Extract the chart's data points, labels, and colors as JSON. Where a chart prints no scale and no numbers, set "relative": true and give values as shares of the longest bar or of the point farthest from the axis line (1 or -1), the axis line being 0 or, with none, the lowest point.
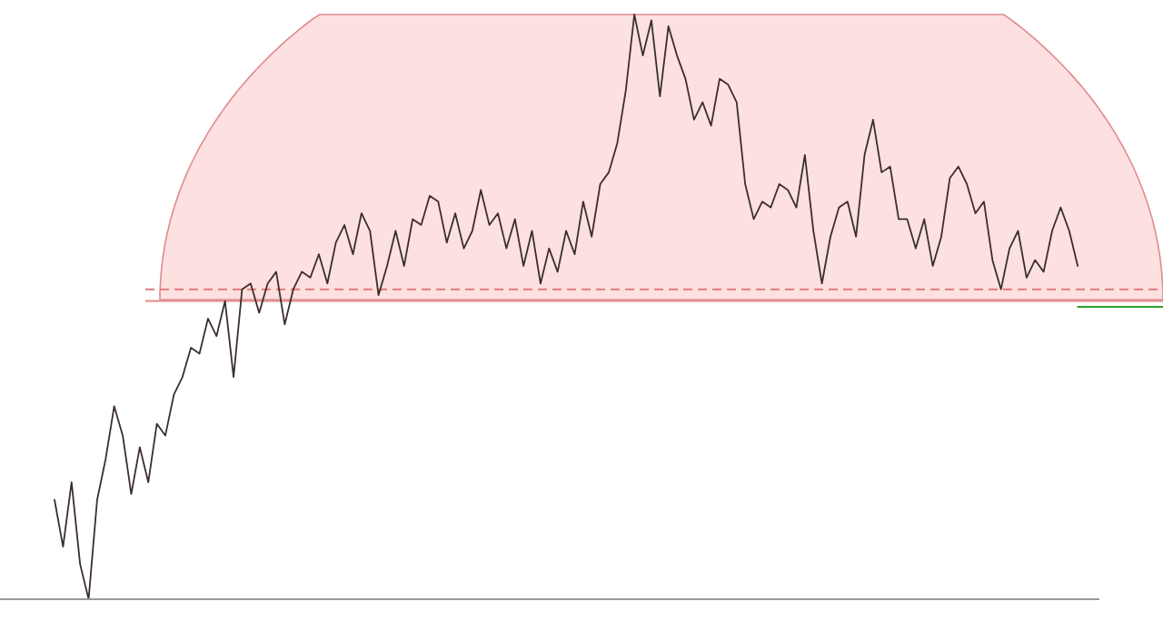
{
  "chart_data": {
    "type": "line",
    "relative": true,
    "categories": [
      null,
      null,
      null,
      null,
      null,
      null,
      null,
      null,
      null,
      null,
      null,
      null,
      null,
      null,
      null,
      null,
      null,
      null,
      null,
      null,
      null,
      null,
      null,
      null,
      null,
      null,
      null,
      null,
      null,
      null,
      null,
      null,
      null,
      null,
      null,
      null,
      null,
      null,
      null,
      null,
      null,
      null,
      null,
      null,
      null,
      null,
      null,
      null,
      null,
      null,
      null,
      null,
      null,
      null,
      null,
      null,
      null,
      null,
      null,
      null,
      null,
      null,
      null,
      null,
      null,
      null,
      null,
      null,
      null,
      null,
      null,
      null,
      null,
      null,
      null,
      null,
      null,
      null,
      null,
      null,
      null,
      null,
      null,
      null,
      null,
      null,
      null,
      null,
      null,
      null,
      null,
      null,
      null,
      null,
      null,
      null,
      null,
      null,
      null,
      null,
      null,
      null,
      null,
      null,
      null,
      null,
      null,
      null,
      null,
      null,
      null,
      null,
      null,
      null,
      null,
      null,
      null,
      null,
      null,
      null,
      null,
      null,
      null,
      null,
      null,
      null,
      null,
      null,
      null,
      null,
      null
    ],
    "series": [
      {
        "color": "#3a2f2a",
        "values": [
          0.17,
          0.09,
          0.2,
          0.06,
          0,
          0.17,
          0.24,
          0.33,
          0.28,
          0.18,
          0.26,
          0.2,
          0.3,
          0.28,
          0.35,
          0.38,
          0.43,
          0.42,
          0.48,
          0.45,
          0.51,
          0.38,
          0.53,
          0.54,
          0.49,
          0.54,
          0.56,
          0.47,
          0.53,
          0.56,
          0.55,
          0.59,
          0.54,
          0.61,
          0.64,
          0.59,
          0.66,
          0.63,
          0.52,
          0.57,
          0.63,
          0.57,
          0.65,
          0.64,
          0.69,
          0.68,
          0.61,
          0.66,
          0.6,
          0.63,
          0.7,
          0.64,
          0.66,
          0.6,
          0.65,
          0.57,
          0.63,
          0.54,
          0.6,
          0.56,
          0.63,
          0.59,
          0.68,
          0.62,
          0.71,
          0.73,
          0.78,
          0.87,
          1,
          0.93,
          0.99,
          0.86,
          0.98,
          0.93,
          0.89,
          0.82,
          0.85,
          0.81,
          0.89,
          0.88,
          0.85,
          0.71,
          0.65,
          0.68,
          0.67,
          0.71,
          0.7,
          0.67,
          0.76,
          0.63,
          0.54,
          0.62,
          0.67,
          0.68,
          0.62,
          0.76,
          0.82,
          0.73,
          0.74,
          0.65,
          0.65,
          0.6,
          0.65,
          0.57,
          0.62,
          0.72,
          0.74,
          0.71,
          0.66,
          0.68,
          0.58,
          0.53,
          0.6,
          0.63,
          0.55,
          0.58,
          0.56,
          0.63,
          0.67,
          0.63,
          0.57,
          null,
          null,
          null,
          null,
          null,
          null,
          null,
          null,
          null,
          null
        ]
      },
      {
        "color": "#2ca02c",
        "values": [
          null,
          null,
          null,
          null,
          null,
          null,
          null,
          null,
          null,
          null,
          null,
          null,
          null,
          null,
          null,
          null,
          null,
          null,
          null,
          null,
          null,
          null,
          null,
          null,
          null,
          null,
          null,
          null,
          null,
          null,
          null,
          null,
          null,
          null,
          null,
          null,
          null,
          null,
          null,
          null,
          null,
          null,
          null,
          null,
          null,
          null,
          null,
          null,
          null,
          null,
          null,
          null,
          null,
          null,
          null,
          null,
          null,
          null,
          null,
          null,
          null,
          null,
          null,
          null,
          null,
          null,
          null,
          null,
          null,
          null,
          null,
          null,
          null,
          null,
          null,
          null,
          null,
          null,
          null,
          null,
          null,
          null,
          null,
          null,
          null,
          null,
          null,
          null,
          null,
          null,
          null,
          null,
          null,
          null,
          null,
          null,
          null,
          null,
          null,
          null,
          null,
          null,
          null,
          null,
          null,
          null,
          null,
          null,
          null,
          null,
          null,
          null,
          null,
          null,
          null,
          null,
          null,
          null,
          null,
          null,
          0.5,
          0.5,
          0.5,
          0.5,
          0.5,
          0.5,
          0.5,
          0.5,
          0.5,
          0.5,
          0.5
        ]
      }
    ],
    "ref_lines": [
      {
        "axis": "y",
        "value": 0.53,
        "color": "#e07a7a",
        "line_style": "dashed"
      },
      {
        "axis": "y",
        "value": 0.51,
        "color": "#e08a8a",
        "line_style": "solid"
      }
    ]
  }
}
